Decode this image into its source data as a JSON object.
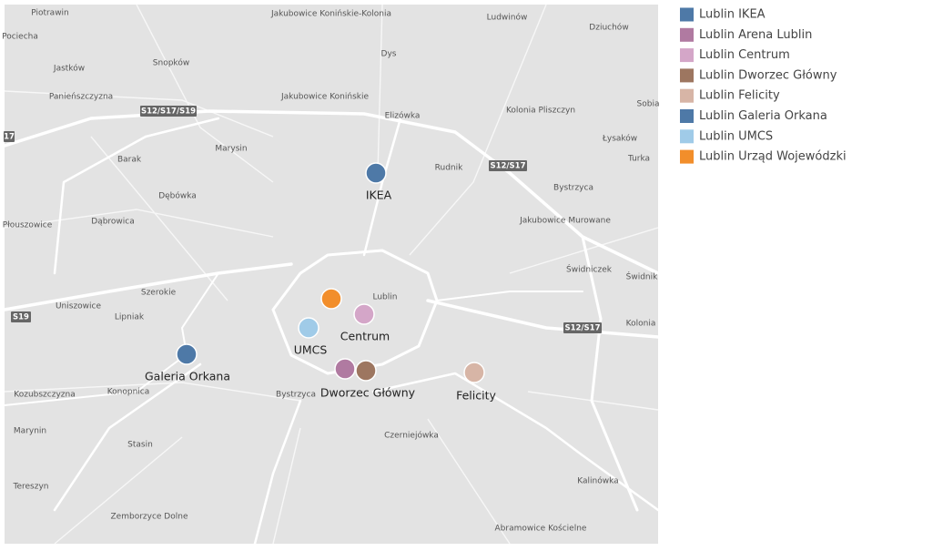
{
  "map": {
    "place_labels": [
      "Piotrawin",
      "Jakubowice Konińskie-Kolonia",
      "Ludwinów",
      "Dziuchów",
      "Pociecha",
      "Dys",
      "Jastków",
      "Snopków",
      "Panieńszczyzna",
      "Jakubowice Konińskie",
      "Elizówka",
      "Kolonia Pliszczyn",
      "Sobia",
      "Łysaków",
      "Marysin",
      "Barak",
      "Rudnik",
      "Turka",
      "Dębówka",
      "Bystrzyca",
      "Płouszowice",
      "Dąbrowica",
      "Jakubowice Murowane",
      "Świdniczek",
      "Świdnik",
      "Szerokie",
      "Lublin",
      "Uniszowice",
      "Lipniak",
      "Kolonia",
      "Kozubszczyzna",
      "Konopnica",
      "Bystrzyca",
      "Marynin",
      "Czerniejówka",
      "Stasin",
      "Tereszyn",
      "Kalinówka",
      "Zemborzyce Dolne",
      "Abramowice Kościelne"
    ],
    "road_labels": [
      "S12/S17/S19",
      "17",
      "S12/S17",
      "S19",
      "S12/S17"
    ]
  },
  "locations": [
    {
      "name": "Lublin IKEA",
      "color": "#4e79a7",
      "label": "IKEA"
    },
    {
      "name": "Lublin Arena Lublin",
      "color": "#b07aa1"
    },
    {
      "name": "Lublin Centrum",
      "color": "#d4a6c8",
      "label": "Centrum"
    },
    {
      "name": "Lublin Dworzec Główny",
      "color": "#9d7660",
      "label": "Dworzec Główny"
    },
    {
      "name": "Lublin Felicity",
      "color": "#d7b5a6",
      "label": "Felicity"
    },
    {
      "name": "Lublin Galeria Orkana",
      "color": "#4e79a7",
      "label": "Galeria Orkana"
    },
    {
      "name": "Lublin UMCS",
      "color": "#a0cbe8"
    },
    {
      "name": "Lublin Urząd Wojewódzki",
      "color": "#f28e2b"
    }
  ],
  "umcs_label": "UMCS"
}
